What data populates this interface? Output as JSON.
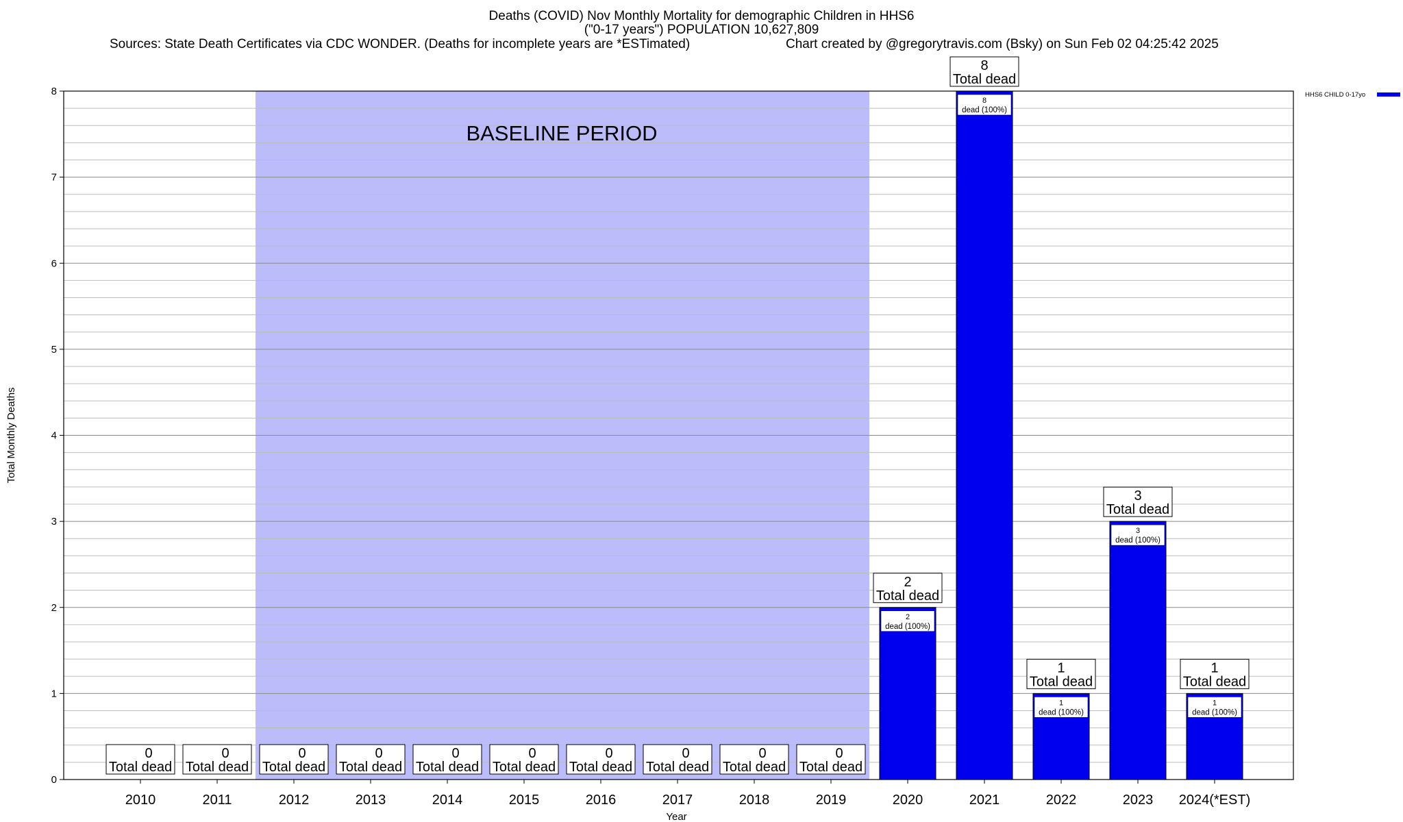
{
  "chart_data": {
    "type": "bar",
    "title_lines": [
      "Deaths (COVID) Nov Monthly Mortality for demographic Children in HHS6",
      "(\"0-17 years\") POPULATION 10,627,809"
    ],
    "source": "Sources: State Death Certificates via CDC WONDER. (Deaths for incomplete years are *ESTimated)",
    "credit": "Chart created by @gregorytravis.com (Bsky) on Sun Feb 02 04:25:42 2025",
    "xlabel": "Year",
    "ylabel": "Total Monthly Deaths",
    "ylim": [
      0,
      8
    ],
    "yticks": [
      "0",
      "1",
      "2",
      "3",
      "4",
      "5",
      "6",
      "7",
      "8"
    ],
    "minor_y_step": 0.2,
    "categories": [
      "2010",
      "2011",
      "2012",
      "2013",
      "2014",
      "2015",
      "2016",
      "2017",
      "2018",
      "2019",
      "2020",
      "2021",
      "2022",
      "2023",
      "2024(*EST)"
    ],
    "series": [
      {
        "name": "HHS6 CHILD 0-17yo",
        "color": "#0000ee",
        "values": [
          0,
          0,
          0,
          0,
          0,
          0,
          0,
          0,
          0,
          0,
          2,
          8,
          1,
          3,
          1
        ]
      }
    ],
    "total_label_text": "Total dead",
    "bar_label_suffix": "dead (100%)",
    "baseline": {
      "label": "BASELINE PERIOD",
      "start_category": "2012",
      "end_category": "2019",
      "color": "#bcbcfa"
    },
    "legend_position": "top-right",
    "grid": true
  }
}
